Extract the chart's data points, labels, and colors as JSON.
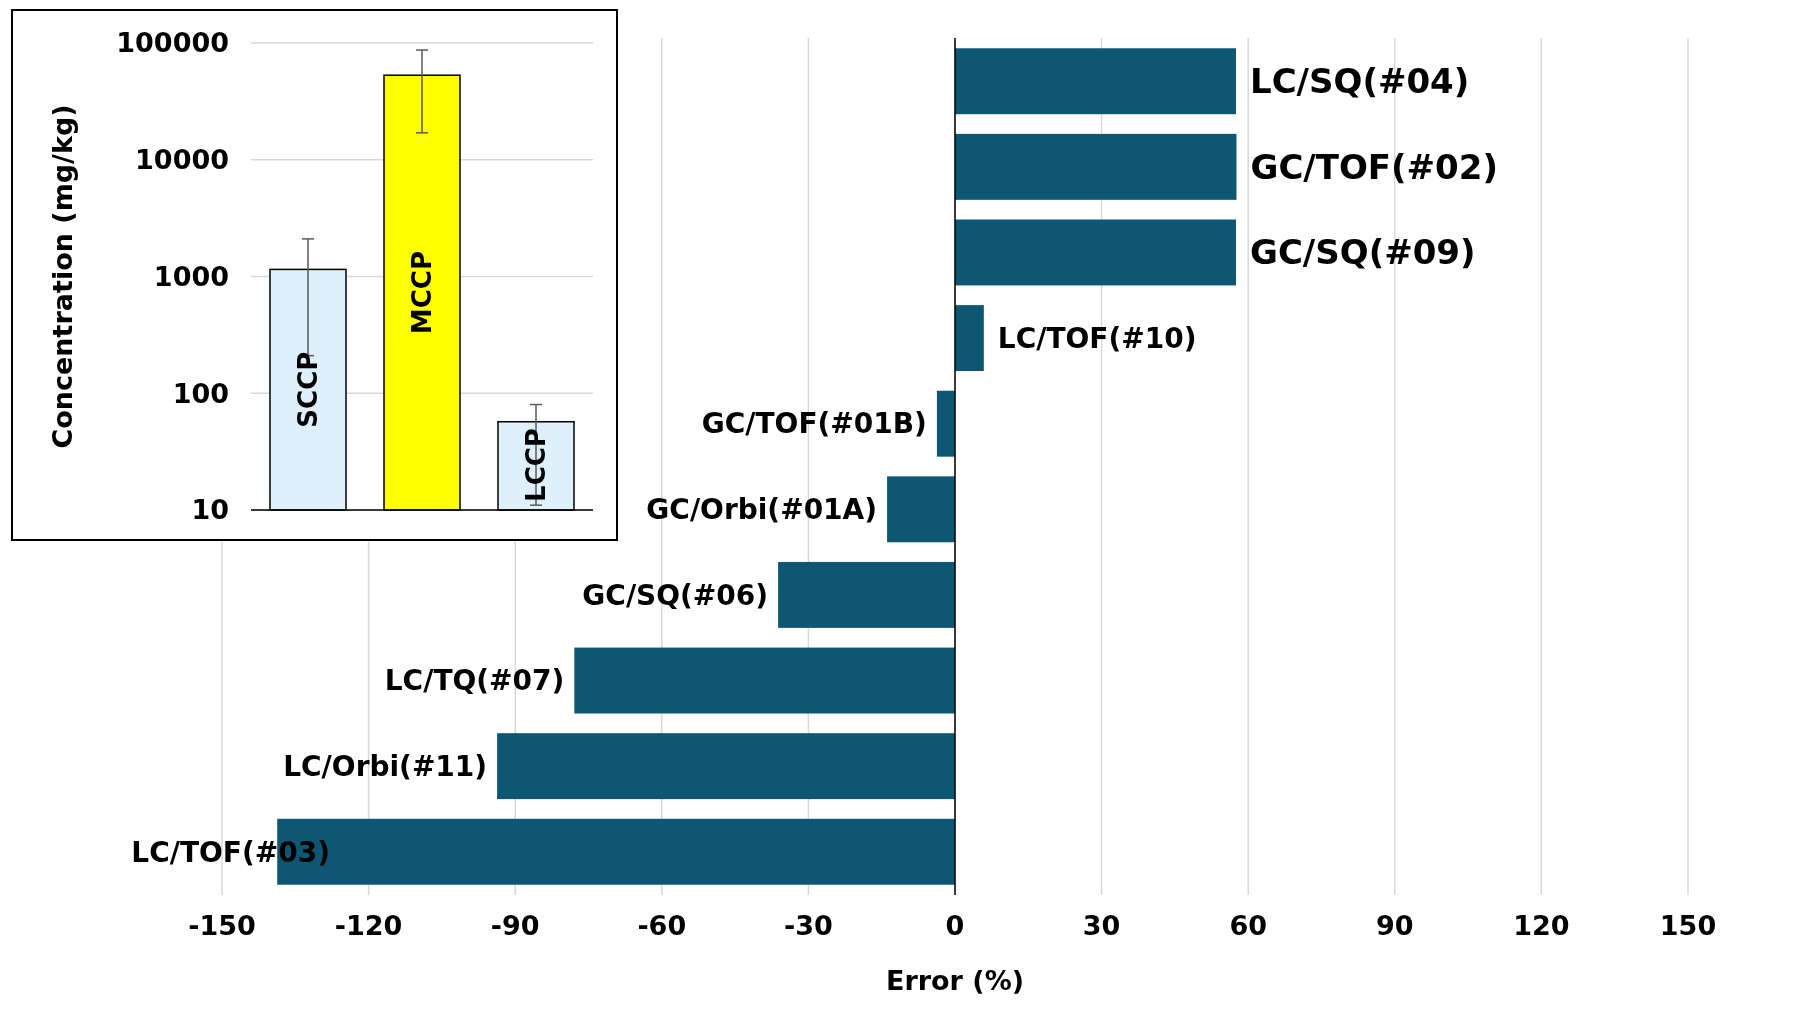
{
  "chart_data": [
    {
      "type": "bar",
      "ylabel": "Concentration (mg/kg)",
      "categories": [
        "SCCP",
        "MCCP",
        "LCCP"
      ],
      "values": [
        1150,
        53000,
        57
      ],
      "colors": [
        "#ddf0fb",
        "#ffff00",
        "#ddf0fb"
      ],
      "errors": [
        [
          210,
          2100
        ],
        [
          17000,
          87000
        ],
        [
          11,
          80
        ]
      ],
      "log": "y",
      "ylim": [
        10,
        100000
      ],
      "yticks": [
        10,
        100,
        1000,
        10000,
        100000
      ],
      "grid": "y"
    },
    {
      "type": "bar",
      "orientation": "horizontal",
      "xlabel": "Error (%)",
      "categories": [
        "LC/SQ(#04)",
        "GC/TOF(#02)",
        "GC/SQ(#09)",
        "LC/TOF(#10)",
        "GC/TOF(#01B)",
        "GC/Orbi(#01A)",
        "GC/SQ(#06)",
        "LC/TQ(#07)",
        "LC/Orbi(#11)",
        "LC/TOF(#03)"
      ],
      "values": [
        57.5,
        57.6,
        57.5,
        5.9,
        -3.7,
        -13.9,
        -36.2,
        -77.9,
        -93.7,
        -138.7
      ],
      "color": "#0d5775",
      "xlim": [
        -150,
        150
      ],
      "xticks": [
        -150,
        -120,
        -90,
        -60,
        -30,
        0,
        30,
        60,
        90,
        120,
        150
      ],
      "grid": "x"
    }
  ]
}
